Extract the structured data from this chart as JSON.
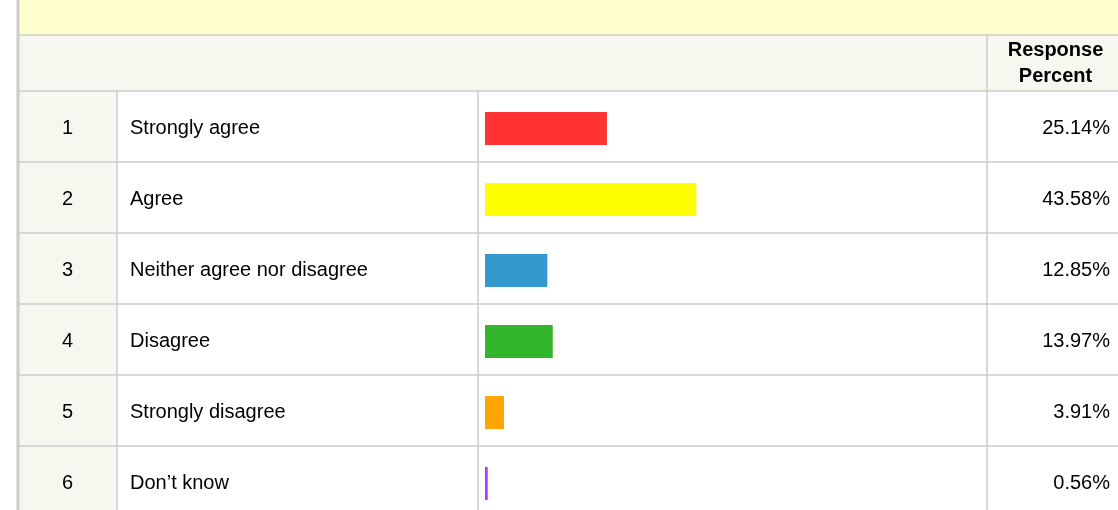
{
  "chart_data": {
    "type": "bar",
    "orientation": "horizontal",
    "categories": [
      "Strongly agree",
      "Agree",
      "Neither agree nor disagree",
      "Disagree",
      "Strongly disagree",
      "Don’t know"
    ],
    "values": [
      25.14,
      43.58,
      12.85,
      13.97,
      3.91,
      0.56
    ],
    "value_labels": [
      "25.14%",
      "43.58%",
      "12.85%",
      "13.97%",
      "3.91%",
      "0.56%"
    ],
    "colors": [
      "#ff3333",
      "#ffff00",
      "#3399cc",
      "#33b52b",
      "#ffa500",
      "#bb33ff"
    ],
    "annotations": [
      "Response Percent",
      "1",
      "2",
      "3",
      "4",
      "5",
      "6"
    ]
  }
}
